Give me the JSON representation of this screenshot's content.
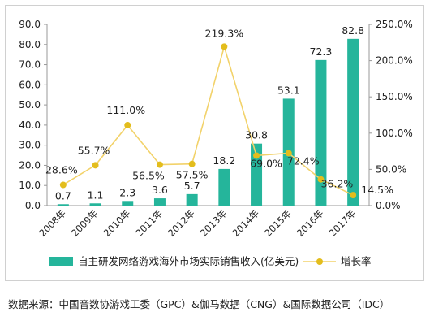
{
  "chart_data": {
    "type": "bar",
    "categories": [
      "2008年",
      "2009年",
      "2010年",
      "2011年",
      "2012年",
      "2013年",
      "2014年",
      "2015年",
      "2016年",
      "2017年"
    ],
    "series": [
      {
        "name": "自主研发网络游戏海外市场实际销售收入(亿美元)",
        "type": "bar",
        "axis": "left",
        "values": [
          0.7,
          1.1,
          2.3,
          3.6,
          5.7,
          18.2,
          30.8,
          53.1,
          72.3,
          82.8
        ],
        "labels": [
          "0.7",
          "1.1",
          "2.3",
          "3.6",
          "5.7",
          "18.2",
          "30.8",
          "53.1",
          "72.3",
          "82.8"
        ]
      },
      {
        "name": "增长率",
        "type": "line",
        "axis": "right",
        "values": [
          28.6,
          55.7,
          111.0,
          56.5,
          57.5,
          219.3,
          69.0,
          72.4,
          36.2,
          14.5
        ],
        "labels": [
          "28.6%",
          "55.7%",
          "111.0%",
          "56.5%",
          "57.5%",
          "219.3%",
          "69.0%",
          "72.4%",
          "36.2%",
          "14.5%"
        ]
      }
    ],
    "ylim_left": [
      0,
      90
    ],
    "yticks_left": [
      "0.0",
      "10.0",
      "20.0",
      "30.0",
      "40.0",
      "50.0",
      "60.0",
      "70.0",
      "80.0",
      "90.0"
    ],
    "ylim_right": [
      0,
      250
    ],
    "yticks_right": [
      "0.0%",
      "50.0%",
      "100.0%",
      "150.0%",
      "200.0%",
      "250.0%"
    ],
    "grid": false,
    "legend_position": "bottom",
    "colors": {
      "bar": "#25b59b",
      "line": "#f2d26a",
      "marker": "#e3bd1c"
    }
  },
  "source_note": "数据来源：中国音数协游戏工委（GPC）&伽马数据（CNG）&国际数据公司（IDC）"
}
